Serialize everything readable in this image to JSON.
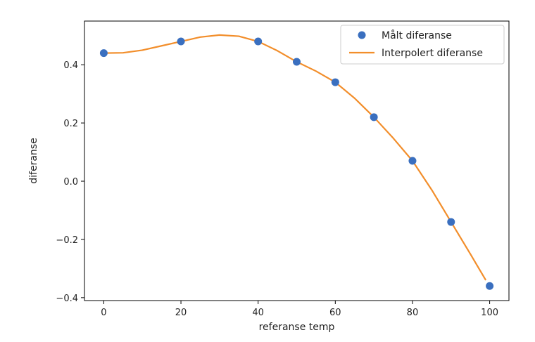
{
  "chart_data": {
    "type": "line",
    "xlabel": "referanse temp",
    "ylabel": "diferanse",
    "xlim": [
      -5,
      105
    ],
    "ylim": [
      -0.41,
      0.55
    ],
    "xticks": [
      0,
      20,
      40,
      60,
      80,
      100
    ],
    "yticks": [
      -0.4,
      -0.2,
      0.0,
      0.2,
      0.4
    ],
    "ytick_labels": [
      "−0.4",
      "−0.2",
      "0.0",
      "0.2",
      "0.4"
    ],
    "grid": false,
    "legend_position": "top-right",
    "series": [
      {
        "name": "Målt diferanse",
        "kind": "scatter",
        "color": "#3a6fbf",
        "x": [
          0,
          20,
          40,
          50,
          60,
          70,
          80,
          90,
          100
        ],
        "y": [
          0.44,
          0.48,
          0.48,
          0.41,
          0.34,
          0.22,
          0.07,
          -0.14,
          -0.36
        ]
      },
      {
        "name": "Interpolert diferanse",
        "kind": "line",
        "color": "#f28e2b",
        "x": [
          0,
          5,
          10,
          15,
          20,
          25,
          30,
          35,
          40,
          45,
          50,
          55,
          60,
          65,
          70,
          75,
          80,
          85,
          90,
          95,
          99
        ],
        "y": [
          0.44,
          0.441,
          0.45,
          0.465,
          0.48,
          0.495,
          0.502,
          0.498,
          0.48,
          0.448,
          0.41,
          0.378,
          0.34,
          0.285,
          0.22,
          0.148,
          0.07,
          -0.03,
          -0.14,
          -0.25,
          -0.34
        ]
      }
    ]
  }
}
